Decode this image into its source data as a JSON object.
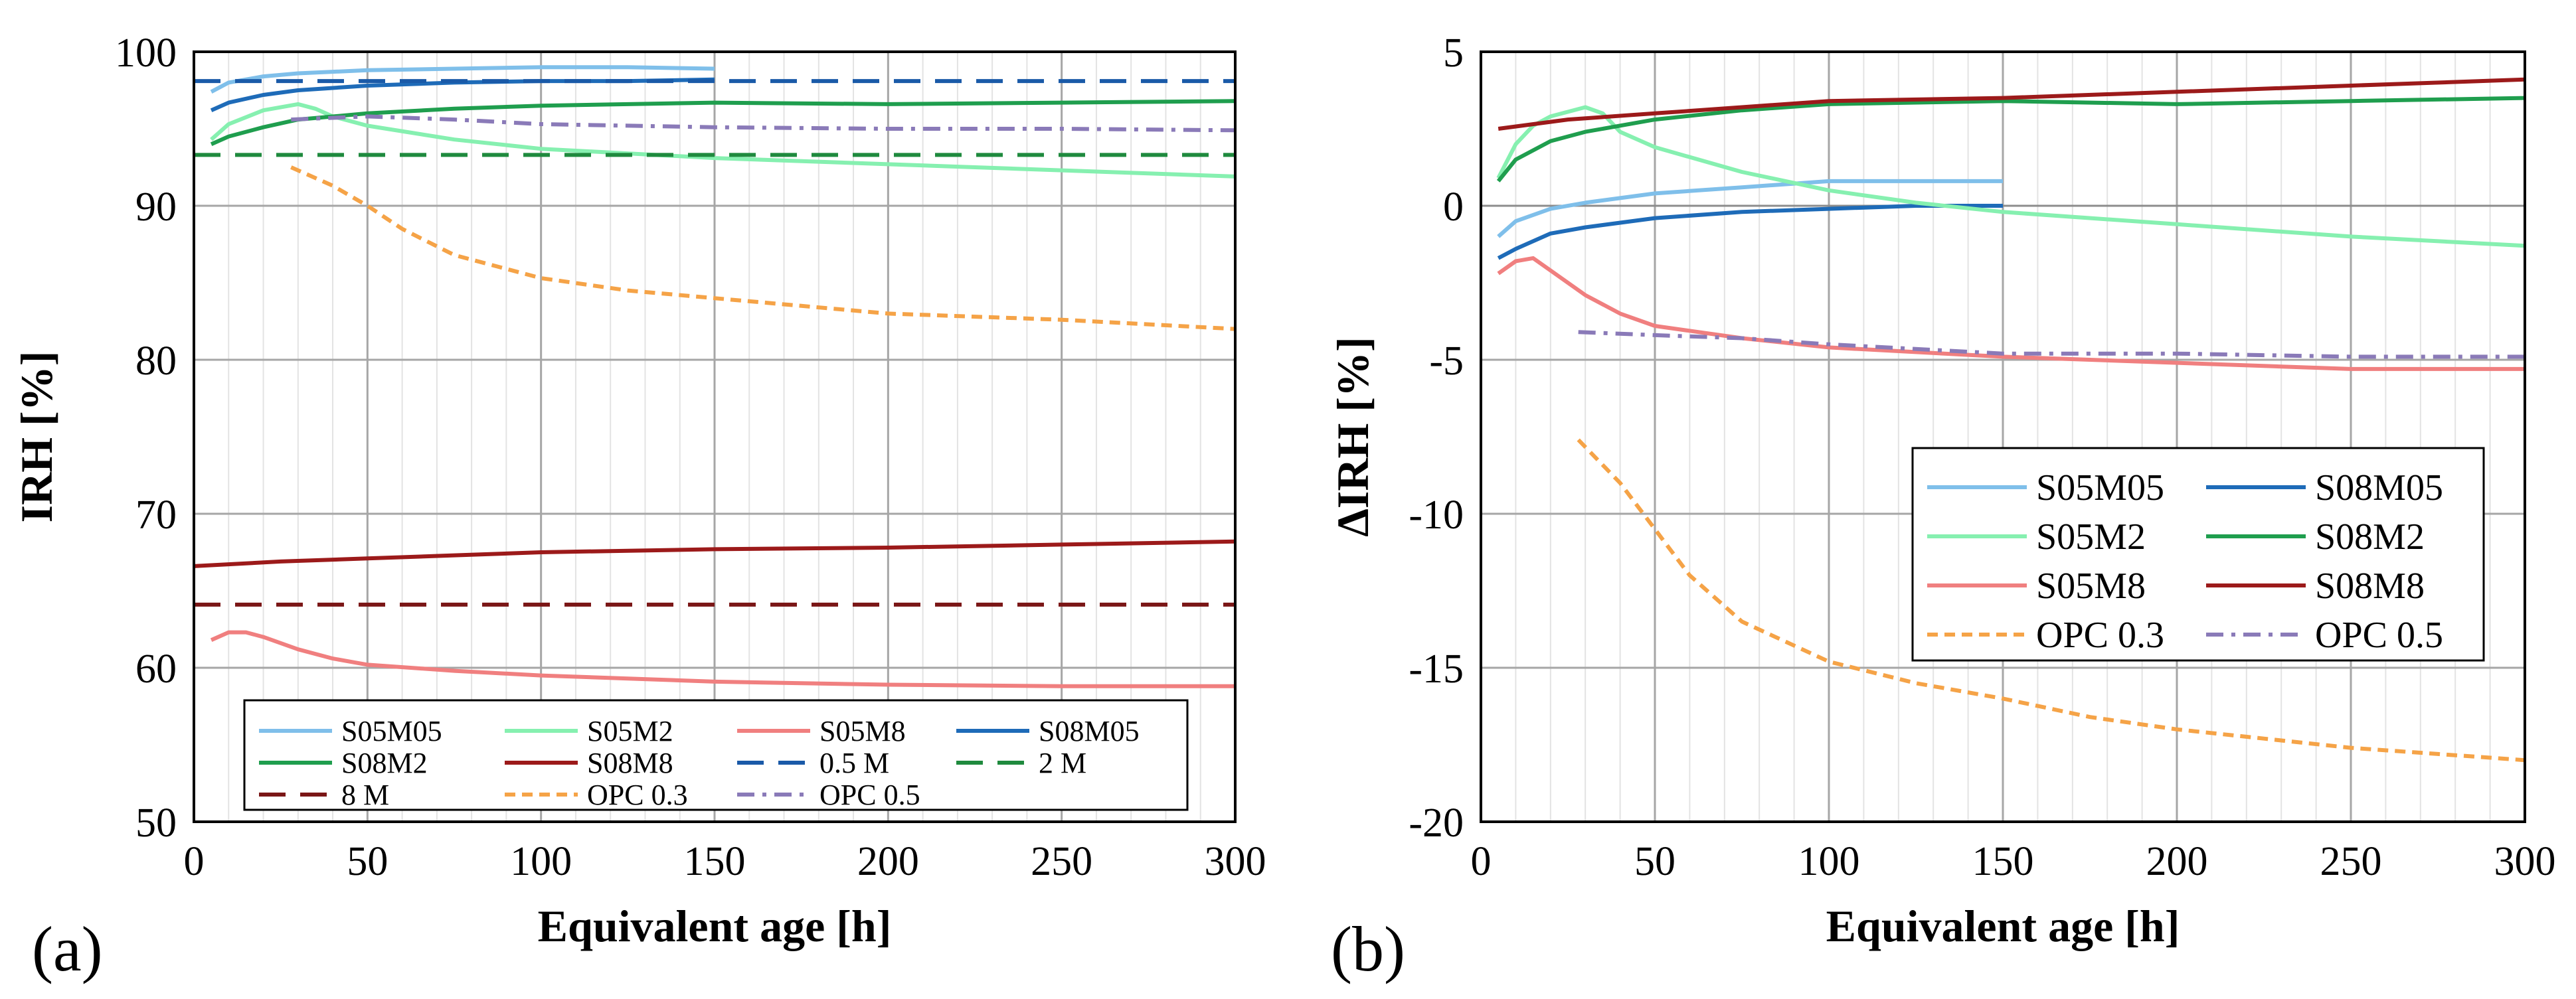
{
  "chart_data": [
    {
      "panel_label": "(a)",
      "type": "line",
      "xlabel": "Equivalent age [h]",
      "ylabel": "IRH [%]",
      "xlim": [
        0,
        300
      ],
      "ylim": [
        50,
        100
      ],
      "x_ticks": [
        0,
        50,
        100,
        150,
        200,
        250,
        300
      ],
      "y_ticks": [
        50,
        60,
        70,
        80,
        90,
        100
      ],
      "x_minor_step": 10,
      "grid": true,
      "legend_position": "bottom-center",
      "legend_columns": 4,
      "series": [
        {
          "name": "S05M05",
          "color": "#7fbfea",
          "dash": "solid",
          "x": [
            5,
            10,
            20,
            30,
            50,
            75,
            100,
            125,
            150
          ],
          "y": [
            97.4,
            98.0,
            98.4,
            98.6,
            98.8,
            98.9,
            99.0,
            99.0,
            98.9
          ]
        },
        {
          "name": "S05M2",
          "color": "#86f0b0",
          "dash": "solid",
          "x": [
            5,
            10,
            20,
            30,
            35,
            40,
            50,
            75,
            100,
            150,
            200,
            250,
            300
          ],
          "y": [
            94.3,
            95.3,
            96.2,
            96.6,
            96.3,
            95.8,
            95.2,
            94.3,
            93.7,
            93.1,
            92.7,
            92.3,
            91.9
          ]
        },
        {
          "name": "S05M8",
          "color": "#f07f7f",
          "dash": "solid",
          "x": [
            5,
            10,
            15,
            20,
            30,
            40,
            50,
            75,
            100,
            150,
            200,
            250,
            300
          ],
          "y": [
            61.8,
            62.3,
            62.3,
            62.0,
            61.2,
            60.6,
            60.2,
            59.8,
            59.5,
            59.1,
            58.9,
            58.8,
            58.8
          ]
        },
        {
          "name": "S08M05",
          "color": "#1e6bb8",
          "dash": "solid",
          "x": [
            5,
            10,
            20,
            30,
            50,
            75,
            100,
            125,
            150
          ],
          "y": [
            96.2,
            96.7,
            97.2,
            97.5,
            97.8,
            98.0,
            98.1,
            98.1,
            98.2
          ]
        },
        {
          "name": "S08M2",
          "color": "#1f9e4e",
          "dash": "solid",
          "x": [
            5,
            10,
            20,
            30,
            50,
            75,
            100,
            150,
            200,
            250,
            300
          ],
          "y": [
            94.0,
            94.5,
            95.1,
            95.6,
            96.0,
            96.3,
            96.5,
            96.7,
            96.6,
            96.7,
            96.8
          ]
        },
        {
          "name": "S08M8",
          "color": "#9c1a1a",
          "dash": "solid",
          "x": [
            0,
            25,
            50,
            75,
            100,
            150,
            200,
            250,
            300
          ],
          "y": [
            66.6,
            66.9,
            67.1,
            67.3,
            67.5,
            67.7,
            67.8,
            68.0,
            68.2
          ]
        },
        {
          "name": "0.5 M",
          "color": "#1a5aa8",
          "dash": "long",
          "x": [
            0,
            300
          ],
          "y": [
            98.1,
            98.1
          ]
        },
        {
          "name": "2 M",
          "color": "#1f8a3e",
          "dash": "long",
          "x": [
            0,
            300
          ],
          "y": [
            93.3,
            93.3
          ]
        },
        {
          "name": "8 M",
          "color": "#7a1616",
          "dash": "long",
          "x": [
            0,
            300
          ],
          "y": [
            64.1,
            64.1
          ]
        },
        {
          "name": "OPC 0.3",
          "color": "#f5a347",
          "dash": "short",
          "x": [
            28,
            40,
            50,
            60,
            75,
            100,
            125,
            150,
            175,
            200,
            250,
            300
          ],
          "y": [
            92.5,
            91.3,
            90.0,
            88.5,
            86.8,
            85.3,
            84.5,
            84.0,
            83.5,
            83.0,
            82.6,
            82.0
          ]
        },
        {
          "name": "OPC 0.5",
          "color": "#8a7ab8",
          "dash": "dashdot",
          "x": [
            28,
            50,
            75,
            100,
            150,
            200,
            250,
            300
          ],
          "y": [
            95.6,
            95.8,
            95.6,
            95.3,
            95.1,
            95.0,
            95.0,
            94.9
          ]
        }
      ]
    },
    {
      "panel_label": "(b)",
      "type": "line",
      "xlabel": "Equivalent age [h]",
      "ylabel": "ΔIRH [%]",
      "xlim": [
        0,
        300
      ],
      "ylim": [
        -20,
        5
      ],
      "x_ticks": [
        0,
        50,
        100,
        150,
        200,
        250,
        300
      ],
      "y_ticks": [
        -20,
        -15,
        -10,
        -5,
        0,
        5
      ],
      "x_minor_step": 10,
      "grid": true,
      "legend_position": "center-right",
      "legend_columns": 2,
      "series": [
        {
          "name": "S05M05",
          "color": "#7fbfea",
          "dash": "solid",
          "x": [
            5,
            10,
            20,
            30,
            50,
            75,
            100,
            125,
            150
          ],
          "y": [
            -1.0,
            -0.5,
            -0.1,
            0.1,
            0.4,
            0.6,
            0.8,
            0.8,
            0.8
          ]
        },
        {
          "name": "S08M05",
          "color": "#1e6bb8",
          "dash": "solid",
          "x": [
            5,
            10,
            20,
            30,
            50,
            75,
            100,
            125,
            150
          ],
          "y": [
            -1.7,
            -1.4,
            -0.9,
            -0.7,
            -0.4,
            -0.2,
            -0.1,
            0.0,
            0.0
          ]
        },
        {
          "name": "S05M2",
          "color": "#86f0b0",
          "dash": "solid",
          "x": [
            5,
            10,
            15,
            20,
            30,
            35,
            40,
            50,
            75,
            100,
            125,
            150,
            200,
            250,
            300
          ],
          "y": [
            0.9,
            2.0,
            2.6,
            2.9,
            3.2,
            3.0,
            2.4,
            1.9,
            1.1,
            0.5,
            0.1,
            -0.2,
            -0.6,
            -1.0,
            -1.3
          ]
        },
        {
          "name": "S08M2",
          "color": "#1f9e4e",
          "dash": "solid",
          "x": [
            5,
            10,
            20,
            30,
            50,
            75,
            100,
            150,
            200,
            250,
            300
          ],
          "y": [
            0.8,
            1.5,
            2.1,
            2.4,
            2.8,
            3.1,
            3.3,
            3.4,
            3.3,
            3.4,
            3.5
          ]
        },
        {
          "name": "S05M8",
          "color": "#f07f7f",
          "dash": "solid",
          "x": [
            5,
            10,
            15,
            20,
            30,
            40,
            50,
            75,
            100,
            150,
            200,
            250,
            300
          ],
          "y": [
            -2.2,
            -1.8,
            -1.7,
            -2.1,
            -2.9,
            -3.5,
            -3.9,
            -4.3,
            -4.6,
            -4.9,
            -5.1,
            -5.3,
            -5.3
          ]
        },
        {
          "name": "S08M8",
          "color": "#9c1a1a",
          "dash": "solid",
          "x": [
            5,
            25,
            50,
            75,
            100,
            150,
            200,
            250,
            300
          ],
          "y": [
            2.5,
            2.8,
            3.0,
            3.2,
            3.4,
            3.5,
            3.7,
            3.9,
            4.1
          ]
        },
        {
          "name": "OPC 0.3",
          "color": "#f5a347",
          "dash": "short",
          "x": [
            28,
            40,
            50,
            60,
            75,
            100,
            125,
            150,
            175,
            200,
            225,
            250,
            275,
            300
          ],
          "y": [
            -7.6,
            -9.0,
            -10.5,
            -12.0,
            -13.5,
            -14.8,
            -15.5,
            -16.0,
            -16.6,
            -17.0,
            -17.3,
            -17.6,
            -17.8,
            -18.0
          ]
        },
        {
          "name": "OPC 0.5",
          "color": "#8a7ab8",
          "dash": "dashdot",
          "x": [
            28,
            50,
            75,
            100,
            150,
            200,
            250,
            300
          ],
          "y": [
            -4.1,
            -4.2,
            -4.3,
            -4.5,
            -4.8,
            -4.8,
            -4.9,
            -4.9
          ]
        }
      ]
    }
  ]
}
